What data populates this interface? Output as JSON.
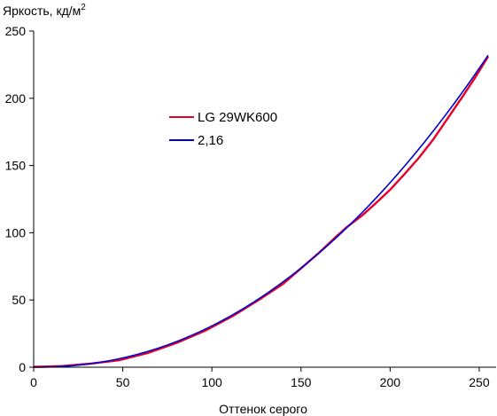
{
  "chart_data": {
    "type": "line",
    "title": "",
    "ylabel": "Яркость, кд/м",
    "ylabel_sup": "2",
    "xlabel": "Оттенок серого",
    "xlim": [
      0,
      255
    ],
    "ylim": [
      0,
      250
    ],
    "xticks": [
      0,
      50,
      100,
      150,
      200,
      250
    ],
    "yticks": [
      0,
      50,
      100,
      150,
      200,
      250
    ],
    "grid": false,
    "legend_position": "upper-left-center",
    "series": [
      {
        "name": "LG 29WK600",
        "color": "#e8002a",
        "x": [
          0,
          16,
          32,
          48,
          64,
          80,
          96,
          112,
          128,
          140,
          150,
          160,
          170,
          176,
          184,
          192,
          200,
          208,
          216,
          224,
          232,
          240,
          248,
          255
        ],
        "y": [
          0.3,
          0.9,
          2.7,
          5.2,
          10.6,
          18.0,
          27.0,
          38.3,
          51.5,
          62.0,
          73.5,
          85.0,
          97.5,
          104.5,
          112.5,
          122.0,
          132.0,
          143.5,
          155.5,
          169.0,
          184.5,
          200.0,
          216.0,
          231.0
        ]
      },
      {
        "name": "2,16",
        "color": "#0000cc",
        "gamma": 2.16,
        "ymax": 232
      }
    ]
  }
}
